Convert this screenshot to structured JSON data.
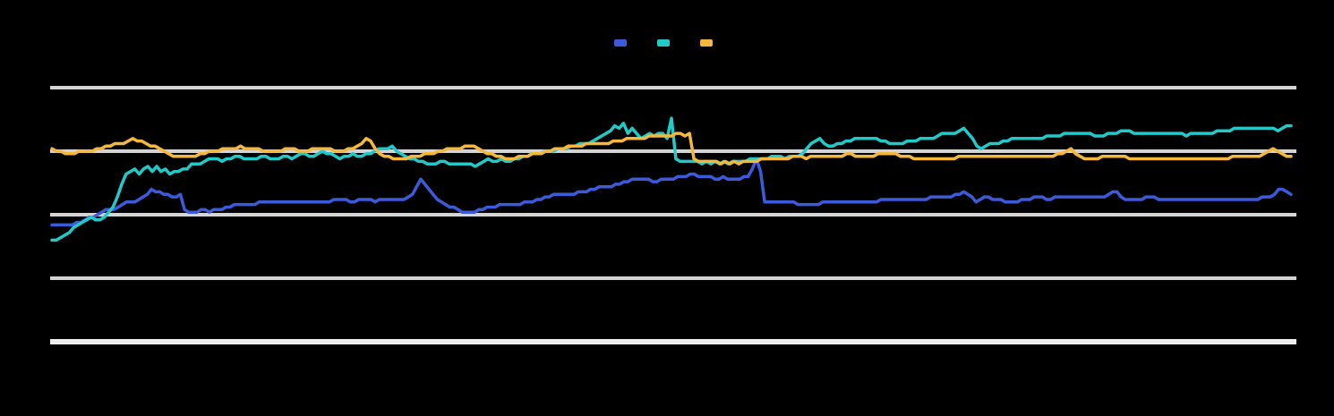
{
  "chart_data": {
    "type": "line",
    "title": "",
    "xlabel": "",
    "ylabel": "",
    "ylim": [
      0,
      100
    ],
    "y2lim": [
      0,
      100
    ],
    "grid": true,
    "legend_position": "top-center",
    "series": [
      {
        "name": "",
        "color": "#3b5bdb",
        "axis": "left",
        "values": [
          46,
          46,
          46,
          46,
          46,
          46,
          47,
          47,
          48,
          49,
          49,
          50,
          51,
          52,
          52,
          52,
          53,
          54,
          55,
          55,
          55,
          56,
          57,
          58,
          60,
          59,
          59,
          58,
          58,
          57,
          57,
          58,
          52,
          51,
          51,
          51,
          52,
          52,
          51,
          52,
          52,
          52,
          53,
          53,
          54,
          54,
          54,
          54,
          54,
          54,
          55,
          55,
          55,
          55,
          55,
          55,
          55,
          55,
          55,
          55,
          55,
          55,
          55,
          55,
          55,
          55,
          55,
          55,
          56,
          56,
          56,
          56,
          55,
          55,
          56,
          56,
          56,
          56,
          55,
          56,
          56,
          56,
          56,
          56,
          56,
          56,
          57,
          58,
          61,
          64,
          62,
          60,
          58,
          56,
          55,
          54,
          53,
          53,
          52,
          51,
          51,
          51,
          51,
          52,
          52,
          53,
          53,
          53,
          54,
          54,
          54,
          54,
          54,
          54,
          55,
          55,
          55,
          56,
          56,
          57,
          57,
          58,
          58,
          58,
          58,
          58,
          58,
          59,
          59,
          59,
          60,
          60,
          61,
          61,
          61,
          61,
          62,
          62,
          63,
          63,
          64,
          64,
          64,
          64,
          64,
          63,
          63,
          64,
          64,
          64,
          64,
          65,
          65,
          65,
          66,
          66,
          65,
          65,
          65,
          65,
          64,
          64,
          65,
          64,
          64,
          64,
          64,
          65,
          65,
          68,
          72,
          67,
          55,
          55,
          55,
          55,
          55,
          55,
          55,
          55,
          54,
          54,
          54,
          54,
          54,
          54,
          55,
          55,
          55,
          55,
          55,
          55,
          55,
          55,
          55,
          55,
          55,
          55,
          55,
          55,
          56,
          56,
          56,
          56,
          56,
          56,
          56,
          56,
          56,
          56,
          56,
          56,
          57,
          57,
          57,
          57,
          57,
          57,
          58,
          58,
          59,
          58,
          57,
          55,
          56,
          57,
          57,
          56,
          56,
          56,
          55,
          55,
          55,
          55,
          56,
          56,
          56,
          57,
          57,
          57,
          56,
          56,
          57,
          57,
          57,
          57,
          57,
          57,
          57,
          57,
          57,
          57,
          57,
          57,
          57,
          58,
          59,
          59,
          57,
          56,
          56,
          56,
          56,
          56,
          57,
          57,
          57,
          56,
          56,
          56,
          56,
          56,
          56,
          56,
          56,
          56,
          56,
          56,
          56,
          56,
          56,
          56,
          56,
          56,
          56,
          56,
          56,
          56,
          56,
          56,
          56,
          56,
          57,
          57,
          57,
          58,
          60,
          60,
          59,
          58
        ]
      },
      {
        "name": "",
        "color": "#22c9c9",
        "axis": "left",
        "values": [
          40,
          40,
          41,
          42,
          43,
          45,
          46,
          47,
          48,
          49,
          48,
          48,
          49,
          51,
          53,
          57,
          62,
          66,
          67,
          68,
          66,
          68,
          69,
          67,
          69,
          67,
          68,
          66,
          67,
          67,
          68,
          68,
          70,
          70,
          70,
          71,
          72,
          72,
          72,
          71,
          72,
          72,
          73,
          73,
          72,
          72,
          72,
          72,
          73,
          73,
          72,
          72,
          72,
          73,
          73,
          72,
          73,
          74,
          74,
          73,
          73,
          74,
          75,
          74,
          74,
          73,
          72,
          73,
          73,
          74,
          73,
          73,
          74,
          74,
          75,
          76,
          76,
          76,
          77,
          75,
          74,
          73,
          72,
          72,
          71,
          71,
          70,
          70,
          70,
          71,
          71,
          70,
          70,
          70,
          70,
          70,
          70,
          69,
          70,
          71,
          72,
          71,
          71,
          72,
          71,
          71,
          72,
          72,
          73,
          73,
          74,
          74,
          74,
          75,
          75,
          75,
          76,
          76,
          76,
          77,
          77,
          78,
          78,
          78,
          79,
          80,
          81,
          82,
          83,
          85,
          84,
          86,
          82,
          84,
          82,
          80,
          81,
          82,
          81,
          82,
          82,
          80,
          88,
          72,
          71,
          71,
          71,
          71,
          71,
          70,
          71,
          70,
          71,
          70,
          71,
          70,
          71,
          71,
          71,
          71,
          72,
          72,
          72,
          72,
          72,
          73,
          73,
          73,
          72,
          73,
          73,
          73,
          74,
          76,
          78,
          79,
          80,
          78,
          77,
          77,
          78,
          78,
          79,
          79,
          80,
          80,
          80,
          80,
          80,
          80,
          79,
          79,
          78,
          78,
          78,
          78,
          79,
          79,
          79,
          80,
          80,
          80,
          80,
          81,
          82,
          82,
          82,
          82,
          83,
          84,
          82,
          80,
          77,
          76,
          77,
          78,
          78,
          78,
          79,
          79,
          80,
          80,
          80,
          80,
          80,
          80,
          80,
          80,
          81,
          81,
          81,
          81,
          82,
          82,
          82,
          82,
          82,
          82,
          82,
          81,
          81,
          81,
          82,
          82,
          82,
          83,
          83,
          83,
          82,
          82,
          82,
          82,
          82,
          82,
          82,
          82,
          82,
          82,
          82,
          82,
          81,
          82,
          82,
          82,
          82,
          82,
          82,
          83,
          83,
          83,
          83,
          84,
          84,
          84,
          84,
          84,
          84,
          84,
          84,
          84,
          84,
          83,
          84,
          85,
          85
        ]
      },
      {
        "name": "",
        "color": "#f5b83d",
        "axis": "right",
        "values": [
          76,
          75,
          75,
          74,
          74,
          74,
          75,
          75,
          75,
          75,
          76,
          76,
          77,
          77,
          78,
          78,
          78,
          79,
          80,
          79,
          79,
          78,
          77,
          77,
          76,
          75,
          74,
          73,
          73,
          73,
          73,
          73,
          73,
          74,
          74,
          75,
          75,
          75,
          76,
          76,
          76,
          76,
          77,
          76,
          76,
          76,
          76,
          75,
          75,
          75,
          75,
          75,
          76,
          76,
          76,
          75,
          75,
          75,
          76,
          76,
          76,
          76,
          76,
          75,
          75,
          75,
          76,
          76,
          77,
          78,
          80,
          79,
          76,
          74,
          73,
          73,
          72,
          72,
          72,
          72,
          73,
          73,
          73,
          74,
          74,
          74,
          75,
          75,
          76,
          76,
          76,
          76,
          77,
          77,
          77,
          76,
          75,
          74,
          74,
          73,
          73,
          72,
          72,
          72,
          73,
          73,
          73,
          74,
          74,
          74,
          75,
          75,
          76,
          76,
          76,
          77,
          77,
          77,
          77,
          78,
          78,
          78,
          78,
          78,
          78,
          79,
          79,
          79,
          80,
          80,
          80,
          80,
          80,
          81,
          81,
          81,
          81,
          81,
          81,
          82,
          82,
          81,
          82,
          72,
          71,
          71,
          71,
          71,
          71,
          70,
          71,
          70,
          71,
          70,
          71,
          71,
          71,
          71,
          72,
          72,
          72,
          72,
          72,
          72,
          72,
          73,
          73,
          73,
          72,
          73,
          73,
          73,
          73,
          73,
          73,
          73,
          73,
          74,
          74,
          73,
          73,
          73,
          73,
          73,
          74,
          74,
          74,
          74,
          74,
          73,
          73,
          73,
          72,
          72,
          72,
          72,
          72,
          72,
          72,
          72,
          72,
          72,
          73,
          73,
          73,
          73,
          73,
          73,
          73,
          73,
          73,
          73,
          73,
          73,
          73,
          73,
          73,
          73,
          73,
          73,
          73,
          73,
          73,
          73,
          74,
          74,
          75,
          76,
          74,
          73,
          72,
          72,
          72,
          72,
          73,
          73,
          73,
          73,
          73,
          73,
          72,
          72,
          72,
          72,
          72,
          72,
          72,
          72,
          72,
          72,
          72,
          72,
          72,
          72,
          72,
          72,
          72,
          72,
          72,
          72,
          72,
          72,
          72,
          73,
          73,
          73,
          73,
          73,
          73,
          73,
          74,
          75,
          76,
          75,
          74,
          73,
          73
        ]
      }
    ]
  }
}
